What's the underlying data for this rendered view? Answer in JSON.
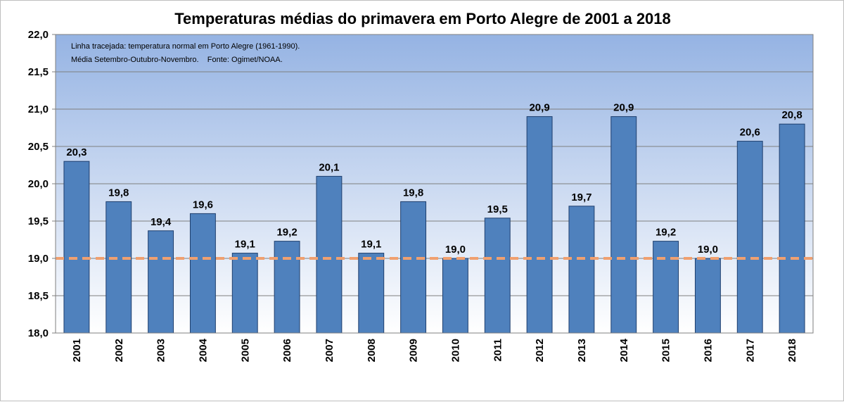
{
  "chart_data": {
    "type": "bar",
    "title": "Temperaturas médias do primavera em Porto Alegre de 2001 a 2018",
    "annotations": [
      "Linha tracejada: temperatura normal em Porto Alegre (1961-1990).",
      "Média Setembro-Outubro-Novembro.    Fonte: Ogimet/NOAA."
    ],
    "categories": [
      "2001",
      "2002",
      "2003",
      "2004",
      "2005",
      "2006",
      "2007",
      "2008",
      "2009",
      "2010",
      "2011",
      "2012",
      "2013",
      "2014",
      "2015",
      "2016",
      "2017",
      "2018"
    ],
    "values": [
      20.3,
      19.76,
      19.37,
      19.6,
      19.07,
      19.23,
      20.1,
      19.07,
      19.76,
      19.0,
      19.54,
      20.9,
      19.7,
      20.9,
      19.23,
      19.0,
      20.57,
      20.8
    ],
    "data_labels": [
      "20,3",
      "19,8",
      "19,4",
      "19,6",
      "19,1",
      "19,2",
      "20,1",
      "19,1",
      "19,8",
      "19,0",
      "19,5",
      "20,9",
      "19,7",
      "20,9",
      "19,2",
      "19,0",
      "20,6",
      "20,8"
    ],
    "yticks": [
      18.0,
      18.5,
      19.0,
      19.5,
      20.0,
      20.5,
      21.0,
      21.5,
      22.0
    ],
    "ytick_labels": [
      "18,0",
      "18,5",
      "19,0",
      "19,5",
      "20,0",
      "20,5",
      "21,0",
      "21,5",
      "22,0"
    ],
    "ylim": [
      18.0,
      22.0
    ],
    "reference_line": 19.0,
    "xlabel": "",
    "ylabel": "",
    "grid": true,
    "colors": {
      "bar": "#4f81bd",
      "bar_edge": "#1f3f6e",
      "reference_line": "#f0a070",
      "plot_bg_top": "#95b3e3",
      "plot_bg_bottom": "#ffffff",
      "grid": "#7f7f7f"
    }
  }
}
